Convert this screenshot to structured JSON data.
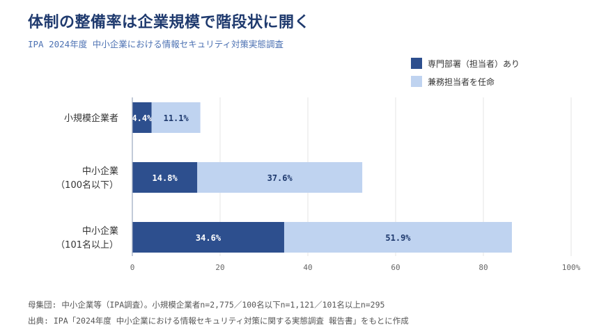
{
  "title": "体制の整備率は企業規模で階段状に開く",
  "subtitle": "IPA 2024年度 中小企業における情報セキュリティ対策実態調査",
  "footnotes": [
    "母集団: 中小企業等（IPA調査）。小規模企業者n=2,775／100名以下n=1,121／101名以上n=295",
    "出典: IPA「2024年度 中小企業における情報セキュリティ対策に関する実態調査 報告書」をもとに作成"
  ],
  "chart_data": {
    "type": "bar",
    "orientation": "horizontal",
    "stacked": true,
    "categories": [
      [
        "小規模企業者"
      ],
      [
        "中小企業",
        "（100名以下）"
      ],
      [
        "中小企業",
        "（101名以上）"
      ]
    ],
    "series": [
      {
        "name": "専門部署（担当者）あり",
        "values": [
          4.4,
          14.8,
          34.6
        ],
        "labels": [
          "4.4%",
          "14.8%",
          "34.6%"
        ],
        "color": "#2d4f8e"
      },
      {
        "name": "兼務担当者を任命",
        "values": [
          11.1,
          37.6,
          51.9
        ],
        "labels": [
          "11.1%",
          "37.6%",
          "51.9%"
        ],
        "color": "#bfd3f0"
      }
    ],
    "xlim": [
      0,
      100
    ],
    "xticks": [
      "0",
      "20",
      "40",
      "60",
      "80",
      "100%"
    ],
    "grid": true,
    "legend": "top-right"
  }
}
